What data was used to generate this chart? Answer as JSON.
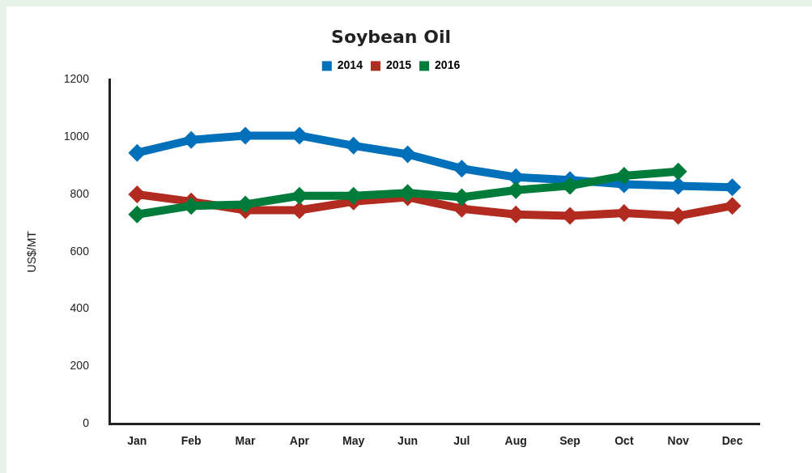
{
  "chart_data": {
    "type": "line",
    "title": "Soybean Oil",
    "ylabel": "US$/MT",
    "categories": [
      "Jan",
      "Feb",
      "Mar",
      "Apr",
      "May",
      "Jun",
      "Jul",
      "Aug",
      "Sep",
      "Oct",
      "Nov",
      "Dec"
    ],
    "series": [
      {
        "name": "2014",
        "color": "#0070bb",
        "values": [
          945,
          990,
          1005,
          1005,
          970,
          940,
          890,
          860,
          850,
          835,
          830,
          825
        ]
      },
      {
        "name": "2015",
        "color": "#b22b20",
        "values": [
          800,
          775,
          745,
          745,
          775,
          790,
          750,
          730,
          725,
          735,
          725,
          760
        ]
      },
      {
        "name": "2016",
        "color": "#007c3a",
        "values": [
          730,
          760,
          765,
          795,
          795,
          805,
          790,
          815,
          830,
          865,
          880,
          null
        ]
      }
    ],
    "ylim": [
      0,
      1200
    ],
    "yticks": [
      0,
      200,
      400,
      600,
      800,
      1000,
      1200
    ],
    "grid": false,
    "legend": "top",
    "marker": "diamond",
    "line_style": "solid"
  }
}
